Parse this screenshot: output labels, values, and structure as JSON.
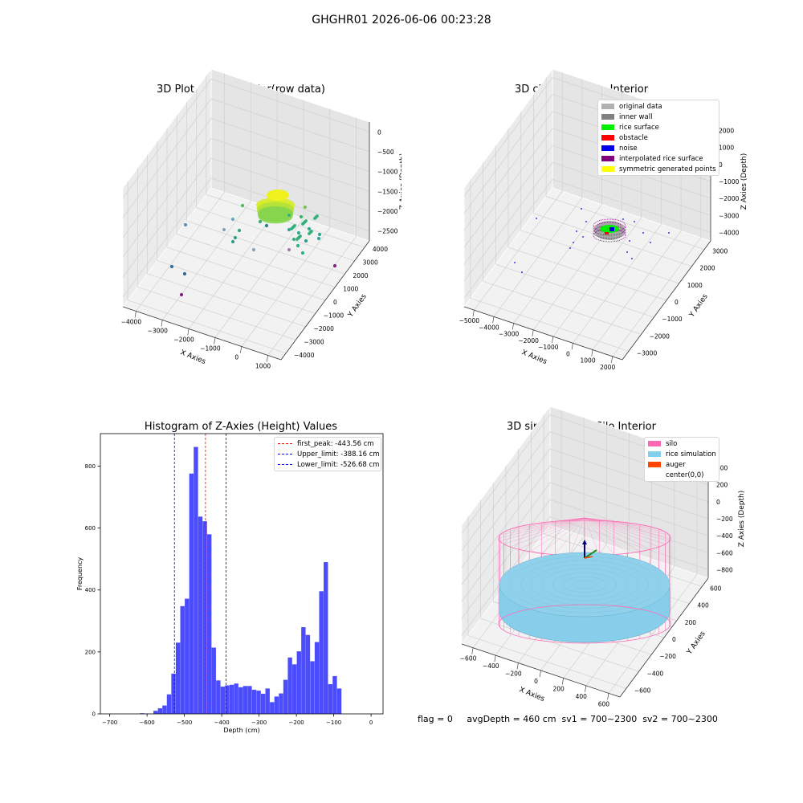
{
  "suptitle": "GHGHR01 2026-06-06 00:23:28",
  "footer": "flag = 0     avgDepth = 460 cm  sv1 = 700~2300  sv2 = 700~2300",
  "panels": {
    "raw": {
      "title": "3D Plot of Silo Interior(row data)",
      "xlabel": "X Axies",
      "ylabel": "Y Axies",
      "zlabel": "Z Axies (Depth)",
      "xticks": [
        "−4000",
        "−3000",
        "−2000",
        "−1000",
        "0",
        "1000"
      ],
      "yticks": [
        "4000",
        "3000",
        "2000",
        "1000",
        "0",
        "−1000",
        "−2000",
        "−3000",
        "−4000"
      ],
      "zticks": [
        "0",
        "−500",
        "−1000",
        "−1500",
        "−2000",
        "−2500"
      ]
    },
    "classify": {
      "title": "3D classify of Silo Interior",
      "xlabel": "X Axies",
      "ylabel": "Y Axies",
      "zlabel": "Z Axies (Depth)",
      "xticks": [
        "−5000",
        "−4000",
        "−3000",
        "−2000",
        "−1000",
        "0",
        "1000",
        "2000"
      ],
      "yticks": [
        "3000",
        "2000",
        "1000",
        "0",
        "−1000",
        "−2000",
        "−3000"
      ],
      "zticks": [
        "2000",
        "1000",
        "0",
        "−1000",
        "−2000",
        "−3000",
        "−4000"
      ],
      "legend": [
        {
          "label": "original data",
          "color": "#b0b0b0"
        },
        {
          "label": "inner wall",
          "color": "#808080"
        },
        {
          "label": "rice surface",
          "color": "#00ee00"
        },
        {
          "label": "obstacle",
          "color": "#ff0000"
        },
        {
          "label": "noise",
          "color": "#0000ee"
        },
        {
          "label": "interpolated rice surface",
          "color": "#800080"
        },
        {
          "label": "symmetric generated points",
          "color": "#ffff00"
        }
      ]
    },
    "simulation": {
      "title": "3D simulation of Silo Interior",
      "xlabel": "X Axies",
      "ylabel": "Y Axies",
      "zlabel": "Z Axies (Depth)",
      "xticks": [
        "−600",
        "−400",
        "−200",
        "0",
        "200",
        "400",
        "600"
      ],
      "yticks": [
        "600",
        "400",
        "200",
        "0",
        "−200",
        "−400",
        "−600"
      ],
      "zticks": [
        "400",
        "200",
        "0",
        "−200",
        "−400",
        "−600",
        "−800"
      ],
      "legend": [
        {
          "label": "silo",
          "color": "#ff69b4"
        },
        {
          "label": "rice simulation",
          "color": "#87ceeb"
        },
        {
          "label": "auger",
          "color": "#ff4500"
        },
        {
          "label": "center(0,0)",
          "color": "#ffffff"
        }
      ]
    }
  },
  "chart_data": {
    "type": "bar",
    "title": "Histogram of Z-Axies (Height) Values",
    "xlabel": "Depth (cm)",
    "ylabel": "Frequency",
    "xlim": [
      -725,
      32
    ],
    "ylim": [
      0,
      905
    ],
    "xticks": [
      -700,
      -600,
      -500,
      -400,
      -300,
      -200,
      -100,
      0
    ],
    "yticks": [
      0,
      200,
      400,
      600,
      800
    ],
    "bin_width": 12,
    "color": "#0000ff",
    "bins": [
      {
        "x": -613,
        "value": 2
      },
      {
        "x": -601,
        "value": 1
      },
      {
        "x": -577,
        "value": 10
      },
      {
        "x": -565,
        "value": 18
      },
      {
        "x": -553,
        "value": 27
      },
      {
        "x": -541,
        "value": 63
      },
      {
        "x": -529,
        "value": 130
      },
      {
        "x": -517,
        "value": 230
      },
      {
        "x": -505,
        "value": 348
      },
      {
        "x": -493,
        "value": 372
      },
      {
        "x": -481,
        "value": 776
      },
      {
        "x": -469,
        "value": 862
      },
      {
        "x": -457,
        "value": 637
      },
      {
        "x": -445,
        "value": 622
      },
      {
        "x": -433,
        "value": 580
      },
      {
        "x": -421,
        "value": 214
      },
      {
        "x": -409,
        "value": 108
      },
      {
        "x": -397,
        "value": 88
      },
      {
        "x": -385,
        "value": 92
      },
      {
        "x": -373,
        "value": 94
      },
      {
        "x": -361,
        "value": 98
      },
      {
        "x": -349,
        "value": 86
      },
      {
        "x": -337,
        "value": 90
      },
      {
        "x": -325,
        "value": 90
      },
      {
        "x": -313,
        "value": 78
      },
      {
        "x": -301,
        "value": 75
      },
      {
        "x": -289,
        "value": 65
      },
      {
        "x": -277,
        "value": 82
      },
      {
        "x": -265,
        "value": 38
      },
      {
        "x": -253,
        "value": 56
      },
      {
        "x": -241,
        "value": 66
      },
      {
        "x": -229,
        "value": 110
      },
      {
        "x": -217,
        "value": 182
      },
      {
        "x": -205,
        "value": 160
      },
      {
        "x": -193,
        "value": 202
      },
      {
        "x": -181,
        "value": 280
      },
      {
        "x": -169,
        "value": 255
      },
      {
        "x": -157,
        "value": 170
      },
      {
        "x": -145,
        "value": 232
      },
      {
        "x": -133,
        "value": 396
      },
      {
        "x": -121,
        "value": 490
      },
      {
        "x": -109,
        "value": 96
      },
      {
        "x": -97,
        "value": 122
      },
      {
        "x": -85,
        "value": 82
      }
    ],
    "vlines": [
      {
        "label": "first_peak: -443.56 cm",
        "x": -443.56,
        "color": "#ff0000"
      },
      {
        "label": "Upper_limit: -388.16 cm",
        "x": -388.16,
        "color": "#0000ff"
      },
      {
        "label": "Lower_limit: -526.68 cm",
        "x": -526.68,
        "color": "#0000ff"
      }
    ]
  }
}
